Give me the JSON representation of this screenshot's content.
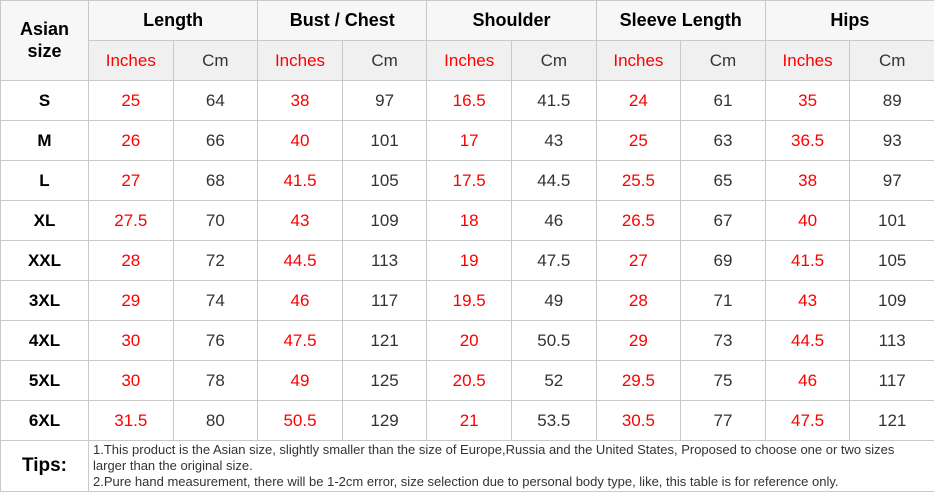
{
  "colors": {
    "red_text": "#fe0000",
    "dark_text": "#333333",
    "bold_text": "#000000",
    "unit_header_bg": "#f0f0f0",
    "group_header_bg": "#f7f7f7",
    "grid_border": "#c9c9c9"
  },
  "chart_data": {
    "type": "table",
    "corner_header": "Asian size",
    "column_groups": [
      "Length",
      "Bust / Chest",
      "Shoulder",
      "Sleeve Length",
      "Hips"
    ],
    "unit_labels": [
      "Inches",
      "Cm"
    ],
    "rows": [
      {
        "size": "S",
        "values": [
          "25",
          "64",
          "38",
          "97",
          "16.5",
          "41.5",
          "24",
          "61",
          "35",
          "89"
        ]
      },
      {
        "size": "M",
        "values": [
          "26",
          "66",
          "40",
          "101",
          "17",
          "43",
          "25",
          "63",
          "36.5",
          "93"
        ]
      },
      {
        "size": "L",
        "values": [
          "27",
          "68",
          "41.5",
          "105",
          "17.5",
          "44.5",
          "25.5",
          "65",
          "38",
          "97"
        ]
      },
      {
        "size": "XL",
        "values": [
          "27.5",
          "70",
          "43",
          "109",
          "18",
          "46",
          "26.5",
          "67",
          "40",
          "101"
        ]
      },
      {
        "size": "XXL",
        "values": [
          "28",
          "72",
          "44.5",
          "113",
          "19",
          "47.5",
          "27",
          "69",
          "41.5",
          "105"
        ]
      },
      {
        "size": "3XL",
        "values": [
          "29",
          "74",
          "46",
          "117",
          "19.5",
          "49",
          "28",
          "71",
          "43",
          "109"
        ]
      },
      {
        "size": "4XL",
        "values": [
          "30",
          "76",
          "47.5",
          "121",
          "20",
          "50.5",
          "29",
          "73",
          "44.5",
          "113"
        ]
      },
      {
        "size": "5XL",
        "values": [
          "30",
          "78",
          "49",
          "125",
          "20.5",
          "52",
          "29.5",
          "75",
          "46",
          "117"
        ]
      },
      {
        "size": "6XL",
        "values": [
          "31.5",
          "80",
          "50.5",
          "129",
          "21",
          "53.5",
          "30.5",
          "77",
          "47.5",
          "121"
        ]
      }
    ],
    "tips": {
      "label": "Tips:",
      "lines": [
        "1.This product is the Asian size, slightly smaller than the size of Europe,Russia and the United States, Proposed to choose one or two sizes larger than the original size.",
        "2.Pure hand measurement, there will be 1-2cm error, size selection due to personal body type, like, this table is for reference only."
      ]
    }
  }
}
